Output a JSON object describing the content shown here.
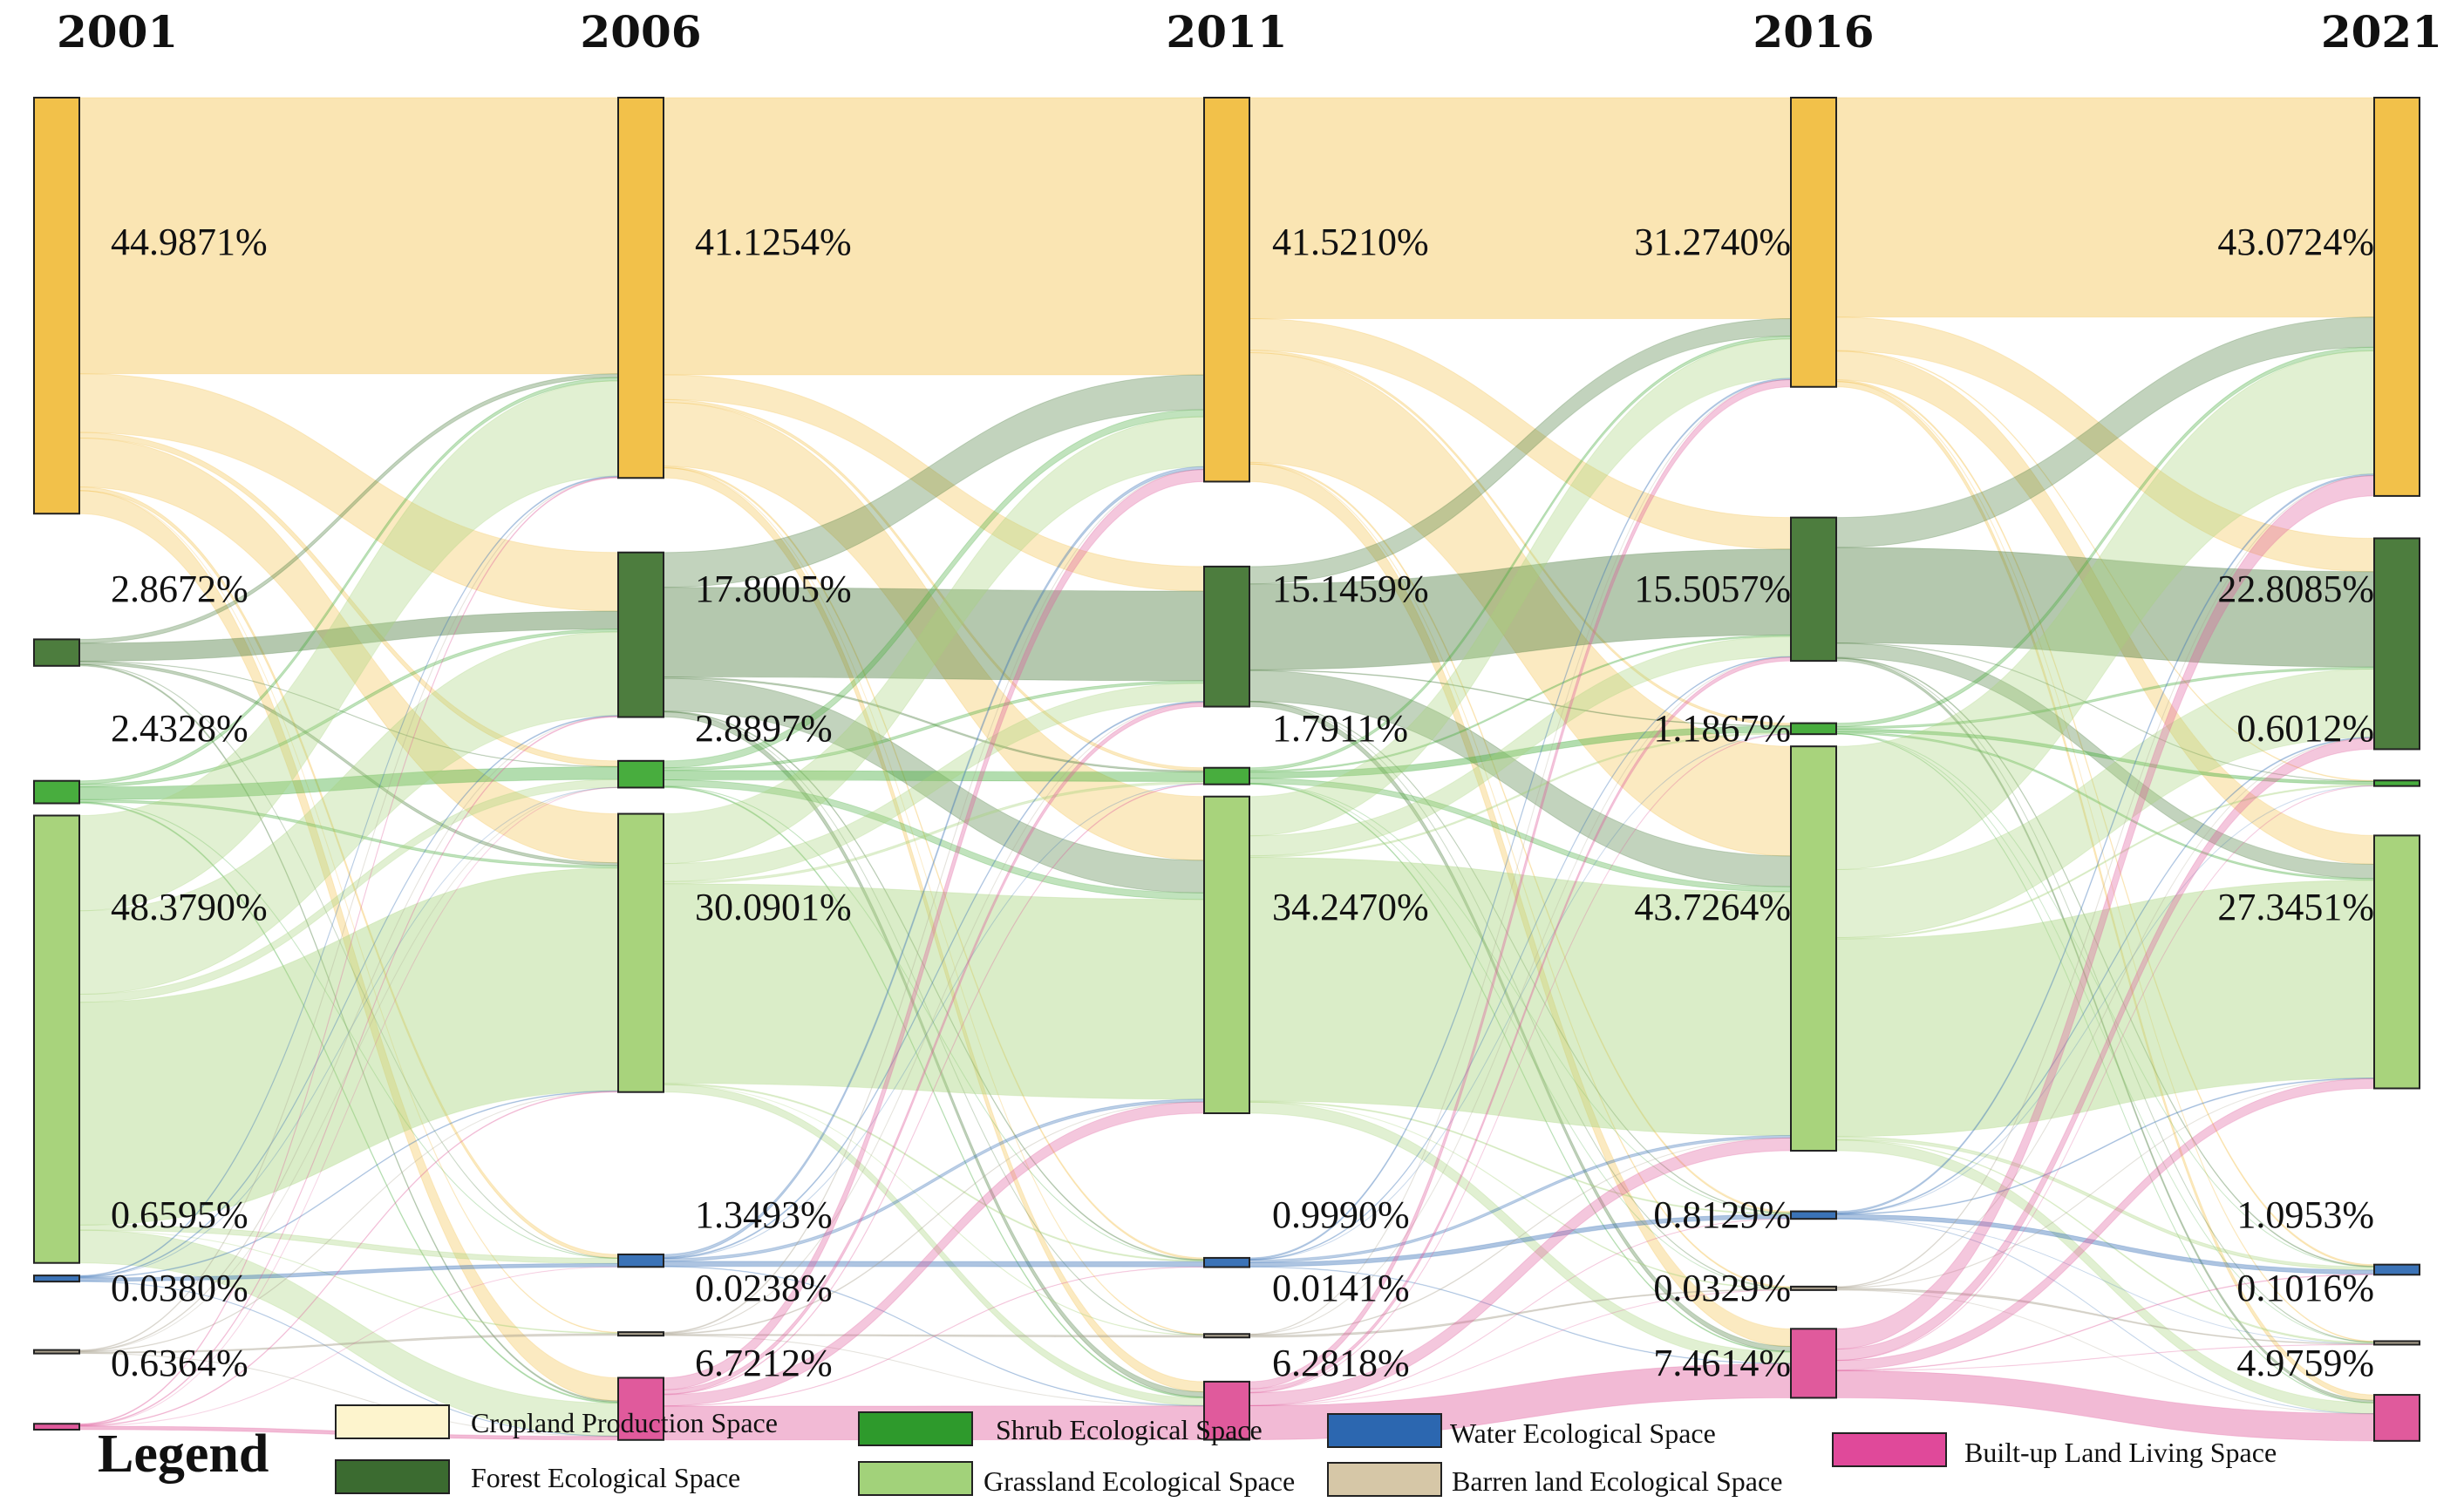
{
  "chart_data": {
    "type": "sankey",
    "title": "",
    "years": [
      "2001",
      "2006",
      "2011",
      "2016",
      "2021"
    ],
    "categories": [
      {
        "key": "cropland",
        "name": "Cropland Production Space",
        "color": "#f2c14a",
        "legend_color": "#fdf4cd"
      },
      {
        "key": "forest",
        "name": "Forest Ecological Space",
        "color": "#4d7d3e",
        "legend_color": "#3b6b30"
      },
      {
        "key": "shrub",
        "name": "Shrub Ecological Space",
        "color": "#48ad3e",
        "legend_color": "#2e9a2c"
      },
      {
        "key": "grassland",
        "name": "Grassland Ecological Space",
        "color": "#a8d37c",
        "legend_color": "#a2d27a"
      },
      {
        "key": "water",
        "name": "Water Ecological Space",
        "color": "#3b73b7",
        "legend_color": "#2c67b0"
      },
      {
        "key": "barren",
        "name": "Barren land Ecological Space",
        "color": "#a89f8c",
        "legend_color": "#d6c7a7"
      },
      {
        "key": "builtup",
        "name": "Built-up Land Living Space",
        "color": "#e05a9c",
        "legend_color": "#e0499a"
      }
    ],
    "series": [
      {
        "year": "2001",
        "values": [
          44.9871,
          2.8672,
          2.4328,
          48.379,
          0.6595,
          0.038,
          0.6364
        ],
        "labels": [
          "44.9871%",
          "2.8672%",
          "2.4328%",
          "48.3790%",
          "0.6595%",
          "0.0380%",
          "0.6364%"
        ]
      },
      {
        "year": "2006",
        "values": [
          41.1254,
          17.8005,
          2.8897,
          30.0901,
          1.3493,
          0.0238,
          6.7212
        ],
        "labels": [
          "41.1254%",
          "17.8005%",
          "2.8897%",
          "30.0901%",
          "1.3493%",
          "0.0238%",
          "6.7212%"
        ]
      },
      {
        "year": "2011",
        "values": [
          41.521,
          15.1459,
          1.7911,
          34.247,
          0.999,
          0.0141,
          6.2818
        ],
        "labels": [
          "41.5210%",
          "15.1459%",
          "1.7911%",
          "34.2470%",
          "0.9990%",
          "0.0141%",
          "6.2818%"
        ]
      },
      {
        "year": "2016",
        "values": [
          31.274,
          15.5057,
          1.1867,
          43.7264,
          0.8129,
          0.0329,
          7.4614
        ],
        "labels": [
          "31.2740%",
          "15.5057%",
          "1.1867%",
          "43.7264%",
          "0.8129%",
          "0.0329%",
          "7.4614%"
        ]
      },
      {
        "year": "2021",
        "values": [
          43.0724,
          22.8085,
          0.6012,
          27.3451,
          1.0953,
          0.1016,
          4.9759
        ],
        "labels": [
          "43.0724%",
          "22.8085%",
          "0.6012%",
          "27.3451%",
          "1.0953%",
          "0.1016%",
          "4.9759%"
        ]
      }
    ],
    "legend": {
      "title": "Legend",
      "position": "bottom"
    }
  }
}
